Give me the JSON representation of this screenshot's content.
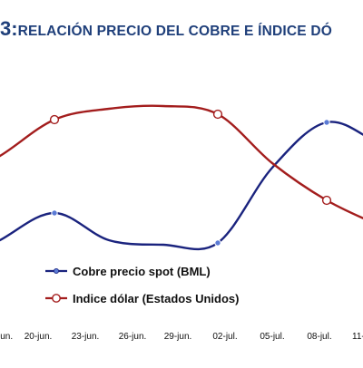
{
  "chart_data": {
    "type": "line",
    "title_number": "3:",
    "title": "RELACIÓN PRECIO DEL COBRE E ÍNDICE DÓ",
    "categories": [
      "jun.",
      "20-jun.",
      "23-jun.",
      "26-jun.",
      "29-jun.",
      "02-jul.",
      "05-jul.",
      "08-jul.",
      "11-"
    ],
    "series": [
      {
        "name": "Cobre precio spot (BML)",
        "color": "#1a237e",
        "marker": "circle-filled",
        "points": [
          [
            -1,
            300
          ],
          [
            0,
            265
          ],
          [
            1,
            235
          ],
          [
            2,
            265
          ],
          [
            3,
            270
          ],
          [
            4,
            268
          ],
          [
            5,
            185
          ],
          [
            6,
            135
          ],
          [
            7,
            160
          ],
          [
            8,
            190
          ],
          [
            9,
            230
          ]
        ]
      },
      {
        "name": "Indice dólar (Estados Unidos)",
        "color": "#a31d1d",
        "marker": "circle-open",
        "points": [
          [
            -1,
            205
          ],
          [
            0,
            172
          ],
          [
            1,
            132
          ],
          [
            2,
            120
          ],
          [
            3,
            117
          ],
          [
            4,
            126
          ],
          [
            5,
            180
          ],
          [
            6,
            221
          ],
          [
            7,
            250
          ],
          [
            8,
            280
          ],
          [
            9,
            330
          ]
        ]
      }
    ],
    "marker_indices": [
      1,
      4,
      6
    ],
    "legend_position": "inside-bottom-left",
    "gridlines": false
  }
}
